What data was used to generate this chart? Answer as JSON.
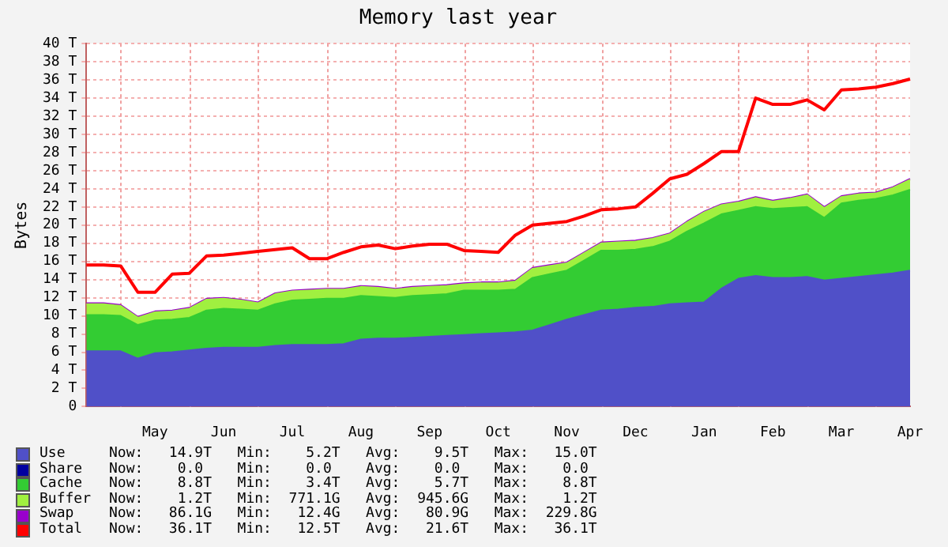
{
  "chart_data": {
    "type": "area",
    "title": "Memory last year",
    "ylabel": "Bytes",
    "stacked": true,
    "categories": [
      null,
      null,
      null,
      null,
      "May",
      null,
      null,
      null,
      "Jun",
      null,
      null,
      null,
      "Jul",
      null,
      null,
      null,
      "Aug",
      null,
      null,
      null,
      "Sep",
      null,
      null,
      null,
      "Oct",
      null,
      null,
      null,
      "Nov",
      null,
      null,
      null,
      "Dec",
      null,
      null,
      null,
      "Jan",
      null,
      null,
      null,
      "Feb",
      null,
      null,
      null,
      "Mar",
      null,
      null,
      null,
      "Apr"
    ],
    "series": [
      {
        "name": "Use",
        "color": "#5050c8",
        "values": [
          6.1,
          6.1,
          6.1,
          5.3,
          5.9,
          6.0,
          6.2,
          6.4,
          6.5,
          6.5,
          6.5,
          6.7,
          6.8,
          6.8,
          6.8,
          6.9,
          7.4,
          7.5,
          7.5,
          7.6,
          7.7,
          7.8,
          7.9,
          8.0,
          8.1,
          8.2,
          8.4,
          9.0,
          9.6,
          10.1,
          10.6,
          10.7,
          10.9,
          11.0,
          11.3,
          11.4,
          11.5,
          13.0,
          14.1,
          14.4,
          14.2,
          14.2,
          14.3,
          13.9,
          14.1,
          14.3,
          14.5,
          14.7,
          15.0
        ]
      },
      {
        "name": "Share",
        "color": "#0000a0",
        "values": [
          null,
          null,
          null,
          null,
          null,
          null,
          null,
          null,
          null,
          null,
          null,
          null,
          null,
          null,
          null,
          null,
          null,
          null,
          null,
          null,
          null,
          null,
          null,
          null,
          null,
          null,
          null,
          null,
          null,
          null,
          null,
          null,
          null,
          null,
          null,
          null,
          null,
          null,
          null,
          null,
          null,
          null,
          null,
          null,
          null,
          null,
          null,
          null,
          null
        ]
      },
      {
        "name": "Cache",
        "color": "#33cc33",
        "values": [
          4.0,
          4.0,
          3.9,
          3.7,
          3.6,
          3.6,
          3.6,
          4.2,
          4.3,
          4.2,
          4.1,
          4.6,
          4.9,
          5.0,
          5.1,
          5.0,
          4.8,
          4.6,
          4.5,
          4.6,
          4.6,
          4.6,
          4.9,
          4.8,
          4.7,
          4.7,
          5.8,
          5.6,
          5.4,
          6.0,
          6.6,
          6.5,
          6.4,
          6.6,
          6.9,
          7.9,
          8.7,
          8.2,
          7.5,
          7.6,
          7.6,
          7.7,
          7.7,
          6.9,
          8.3,
          8.4,
          8.4,
          8.6,
          8.9
        ]
      },
      {
        "name": "Buffer",
        "color": "#a0f040",
        "values": [
          1.2,
          1.2,
          1.1,
          0.8,
          0.9,
          0.9,
          1.0,
          1.2,
          1.1,
          1.0,
          0.8,
          1.1,
          1.0,
          1.0,
          1.0,
          1.0,
          1.0,
          1.0,
          0.9,
          0.9,
          0.9,
          0.9,
          0.7,
          0.8,
          0.8,
          0.9,
          1.0,
          0.9,
          0.8,
          0.8,
          0.8,
          0.9,
          0.9,
          0.9,
          0.8,
          1.0,
          1.2,
          1.0,
          0.9,
          1.0,
          0.8,
          1.0,
          1.3,
          1.1,
          0.7,
          0.7,
          0.6,
          0.8,
          1.1
        ]
      },
      {
        "name": "Swap",
        "color": "#9900cc",
        "values": [
          0.1,
          0.1,
          0.1,
          0.1,
          0.1,
          0.1,
          0.1,
          0.1,
          0.1,
          0.1,
          0.1,
          0.1,
          0.1,
          0.1,
          0.1,
          0.1,
          0.1,
          0.1,
          0.1,
          0.1,
          0.1,
          0.1,
          0.1,
          0.1,
          0.1,
          0.1,
          0.1,
          0.1,
          0.1,
          0.1,
          0.1,
          0.1,
          0.1,
          0.1,
          0.1,
          0.1,
          0.1,
          0.1,
          0.1,
          0.1,
          0.1,
          0.1,
          0.1,
          0.1,
          0.1,
          0.1,
          0.1,
          0.1,
          0.1
        ]
      },
      {
        "name": "Total",
        "type": "line",
        "color": "#ff0000",
        "values": [
          15.6,
          15.6,
          15.5,
          12.6,
          12.6,
          14.6,
          14.7,
          16.6,
          16.7,
          16.9,
          17.1,
          17.3,
          17.5,
          16.3,
          16.3,
          17.0,
          17.6,
          17.8,
          17.4,
          17.7,
          17.9,
          17.9,
          17.2,
          17.1,
          17.0,
          18.9,
          20.0,
          20.2,
          20.4,
          21.0,
          21.7,
          21.8,
          22.0,
          23.5,
          25.1,
          25.6,
          26.8,
          28.1,
          28.1,
          34.0,
          33.3,
          33.3,
          33.8,
          32.7,
          34.9,
          35.0,
          35.2,
          35.6,
          36.1
        ]
      }
    ],
    "annotations": [
      "Now:   14.9T   Min:    5.2T   Avg:    9.5T   Max:   15.0T",
      "Now:    0.0    Min:    0.0    Avg:    0.0    Max:    0.0",
      "Now:    8.8T   Min:    3.4T   Avg:    5.7T   Max:    8.8T",
      "Now:    1.2T   Min:  771.1G   Avg:  945.6G   Max:    1.2T",
      "Now:   86.1G   Min:   12.4G   Avg:   80.9G   Max:  229.8G",
      "Now:   36.1T   Min:   12.5T   Avg:   21.6T   Max:   36.1T"
    ],
    "ylim": [
      0,
      40
    ],
    "yticks": [
      0,
      {
        "value": 2,
        "label": "2 T"
      },
      {
        "value": 4,
        "label": "4 T"
      },
      {
        "value": 6,
        "label": "6 T"
      },
      {
        "value": 8,
        "label": "8 T"
      },
      {
        "value": 10,
        "label": "10 T"
      },
      {
        "value": 12,
        "label": "12 T"
      },
      {
        "value": 14,
        "label": "14 T"
      },
      {
        "value": 16,
        "label": "16 T"
      },
      {
        "value": 18,
        "label": "18 T"
      },
      {
        "value": 20,
        "label": "20 T"
      },
      {
        "value": 22,
        "label": "22 T"
      },
      {
        "value": 24,
        "label": "24 T"
      },
      {
        "value": 26,
        "label": "26 T"
      },
      {
        "value": 28,
        "label": "28 T"
      },
      {
        "value": 30,
        "label": "30 T"
      },
      {
        "value": 32,
        "label": "32 T"
      },
      {
        "value": 34,
        "label": "34 T"
      },
      {
        "value": 36,
        "label": "36 T"
      },
      {
        "value": 38,
        "label": "38 T"
      },
      {
        "value": 40,
        "label": "40 T"
      }
    ],
    "grid": true,
    "legend": "bottom"
  }
}
